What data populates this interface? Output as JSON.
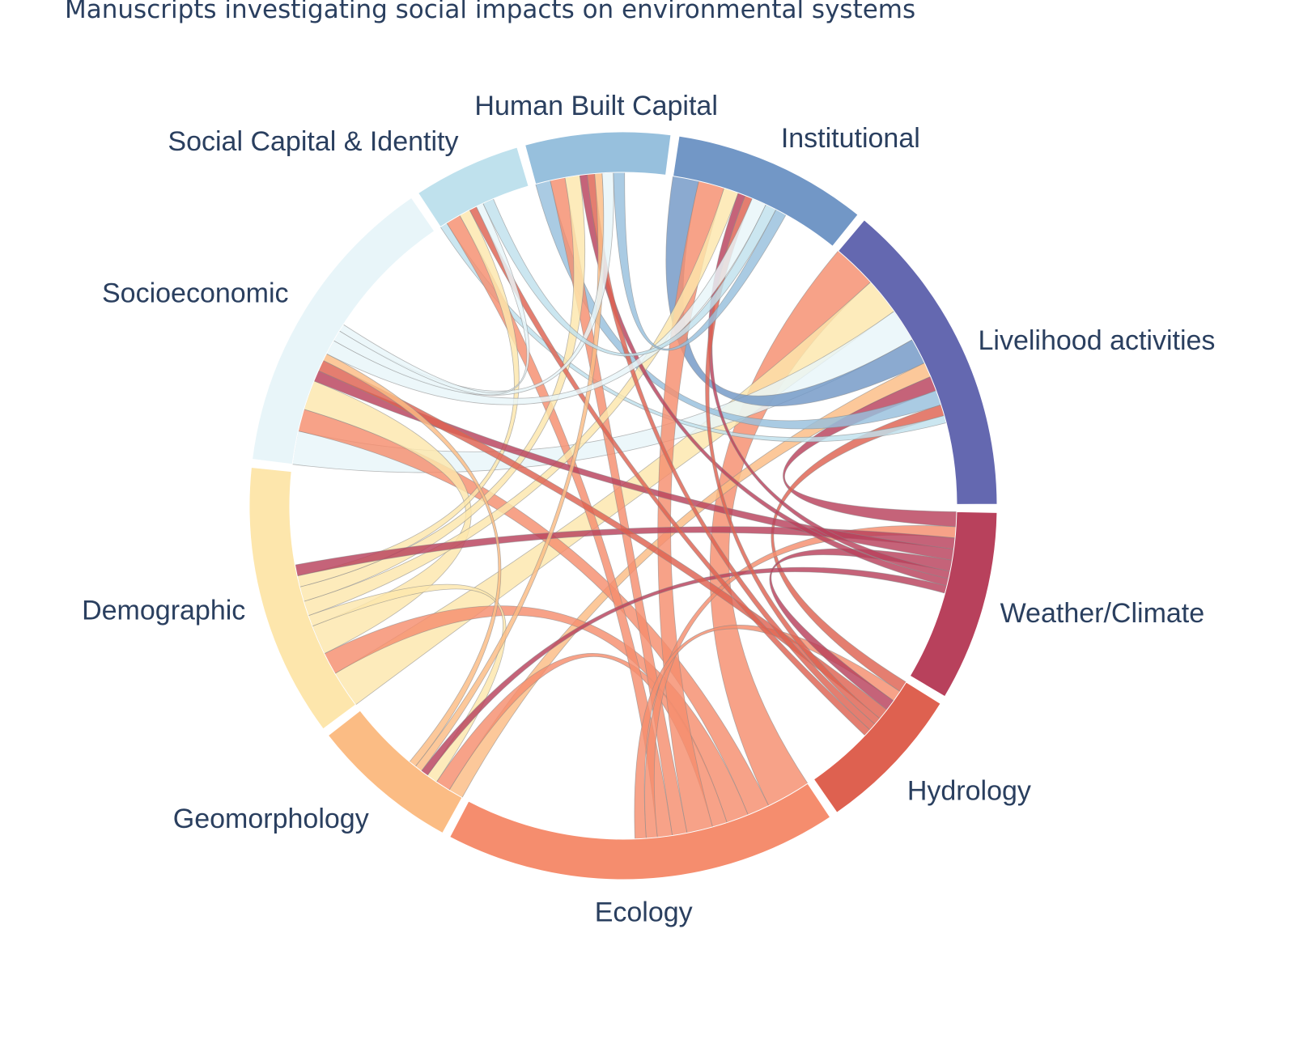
{
  "title": "Manuscripts investigating social impacts on environmental systems",
  "chart_data": {
    "type": "chord",
    "groups": [
      {
        "id": "weather",
        "label": "Weather/Climate",
        "color": "#b8415c",
        "value": 46
      },
      {
        "id": "hydrology",
        "label": "Hydrology",
        "color": "#de6150",
        "value": 36
      },
      {
        "id": "ecology",
        "label": "Ecology",
        "color": "#f58d6e",
        "value": 95
      },
      {
        "id": "geomorphology",
        "label": "Geomorphology",
        "color": "#fbbc84",
        "value": 36
      },
      {
        "id": "demographic",
        "label": "Demographic",
        "color": "#fde6ac",
        "value": 66
      },
      {
        "id": "socioeconomic",
        "label": "Socioeconomic",
        "color": "#e8f5f9",
        "value": 75
      },
      {
        "id": "social_capital",
        "label": "Social Capital & Identity",
        "color": "#bfe1ed",
        "value": 26
      },
      {
        "id": "human_built",
        "label": "Human Built Capital",
        "color": "#97c0dd",
        "value": 35
      },
      {
        "id": "institutional",
        "label": "Institutional",
        "color": "#7297c6",
        "value": 47
      },
      {
        "id": "livelihood",
        "label": "Livelihood activities",
        "color": "#6468b0",
        "value": 77
      }
    ],
    "links": [
      {
        "source": "ecology",
        "target": "livelihood",
        "value": 12
      },
      {
        "source": "demographic",
        "target": "livelihood",
        "value": 10
      },
      {
        "source": "socioeconomic",
        "target": "livelihood",
        "value": 9
      },
      {
        "source": "institutional",
        "target": "livelihood",
        "value": 7
      },
      {
        "source": "geomorphology",
        "target": "livelihood",
        "value": 4
      },
      {
        "source": "weather",
        "target": "livelihood",
        "value": 4
      },
      {
        "source": "human_built",
        "target": "livelihood",
        "value": 4
      },
      {
        "source": "hydrology",
        "target": "livelihood",
        "value": 3
      },
      {
        "source": "social_capital",
        "target": "livelihood",
        "value": 2
      },
      {
        "source": "ecology",
        "target": "socioeconomic",
        "value": 6
      },
      {
        "source": "ecology",
        "target": "demographic",
        "value": 6
      },
      {
        "source": "ecology",
        "target": "geomorphology",
        "value": 4
      },
      {
        "source": "ecology",
        "target": "institutional",
        "value": 7
      },
      {
        "source": "ecology",
        "target": "human_built",
        "value": 4
      },
      {
        "source": "ecology",
        "target": "social_capital",
        "value": 4
      },
      {
        "source": "ecology",
        "target": "weather",
        "value": 3
      },
      {
        "source": "ecology",
        "target": "hydrology",
        "value": 3
      },
      {
        "source": "demographic",
        "target": "socioeconomic",
        "value": 8
      },
      {
        "source": "demographic",
        "target": "geomorphology",
        "value": 3
      },
      {
        "source": "demographic",
        "target": "institutional",
        "value": 4
      },
      {
        "source": "demographic",
        "target": "human_built",
        "value": 4
      },
      {
        "source": "demographic",
        "target": "social_capital",
        "value": 3
      },
      {
        "source": "weather",
        "target": "demographic",
        "value": 3
      },
      {
        "source": "weather",
        "target": "socioeconomic",
        "value": 3
      },
      {
        "source": "weather",
        "target": "hydrology",
        "value": 3
      },
      {
        "source": "weather",
        "target": "institutional",
        "value": 2
      },
      {
        "source": "weather",
        "target": "human_built",
        "value": 2
      },
      {
        "source": "weather",
        "target": "geomorphology",
        "value": 2
      },
      {
        "source": "hydrology",
        "target": "socioeconomic",
        "value": 3
      },
      {
        "source": "hydrology",
        "target": "institutional",
        "value": 2
      },
      {
        "source": "hydrology",
        "target": "human_built",
        "value": 2
      },
      {
        "source": "hydrology",
        "target": "social_capital",
        "value": 2
      },
      {
        "source": "geomorphology",
        "target": "human_built",
        "value": 2
      },
      {
        "source": "geomorphology",
        "target": "socioeconomic",
        "value": 2
      },
      {
        "source": "socioeconomic",
        "target": "institutional",
        "value": 4
      },
      {
        "source": "socioeconomic",
        "target": "human_built",
        "value": 3
      },
      {
        "source": "socioeconomic",
        "target": "social_capital",
        "value": 2
      },
      {
        "source": "social_capital",
        "target": "institutional",
        "value": 3
      },
      {
        "source": "human_built",
        "target": "institutional",
        "value": 3
      }
    ]
  }
}
